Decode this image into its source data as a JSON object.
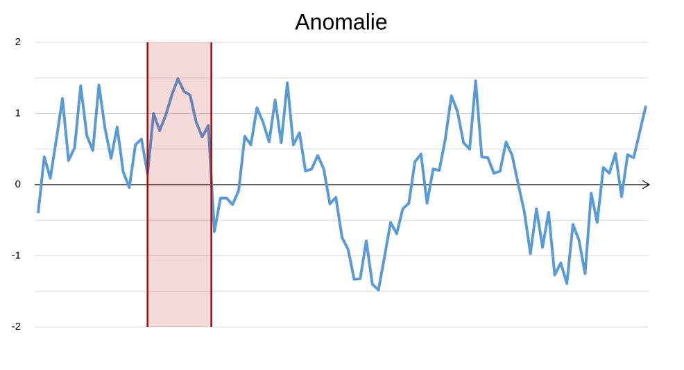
{
  "chart_data": {
    "type": "line",
    "title": "Anomalie",
    "values": [
      -0.4,
      0.39,
      0.09,
      0.64,
      1.21,
      0.34,
      0.52,
      1.39,
      0.69,
      0.48,
      1.4,
      0.79,
      0.37,
      0.81,
      0.18,
      -0.04,
      0.56,
      0.64,
      0.15,
      1.0,
      0.76,
      0.98,
      1.26,
      1.49,
      1.31,
      1.26,
      0.88,
      0.67,
      0.83,
      -0.66,
      -0.19,
      -0.19,
      -0.28,
      -0.08,
      0.68,
      0.56,
      1.08,
      0.88,
      0.6,
      1.19,
      0.59,
      1.43,
      0.56,
      0.73,
      0.19,
      0.22,
      0.41,
      0.22,
      -0.27,
      -0.18,
      -0.74,
      -0.91,
      -1.33,
      -1.32,
      -0.79,
      -1.4,
      -1.48,
      -1.01,
      -0.53,
      -0.69,
      -0.34,
      -0.26,
      0.32,
      0.43,
      -0.26,
      0.22,
      0.2,
      0.64,
      1.25,
      1.03,
      0.59,
      0.5,
      1.46,
      0.39,
      0.38,
      0.16,
      0.19,
      0.6,
      0.41,
      0.01,
      -0.38,
      -0.97,
      -0.34,
      -0.88,
      -0.39,
      -1.27,
      -1.1,
      -1.39,
      -0.56,
      -0.78,
      -1.25,
      -0.12,
      -0.53,
      0.24,
      0.16,
      0.44,
      -0.17,
      0.42,
      0.38,
      0.74,
      1.11
    ],
    "color": "#5b9bd5",
    "ylim": [
      -2,
      2
    ],
    "yticks": [
      -2,
      -1,
      0,
      1,
      2
    ],
    "minor_yticks": [
      -1.5,
      -0.5,
      0.5,
      1.5
    ],
    "grid": true,
    "highlight_range": [
      18,
      28.5
    ],
    "highlight_color": "#c00000"
  }
}
